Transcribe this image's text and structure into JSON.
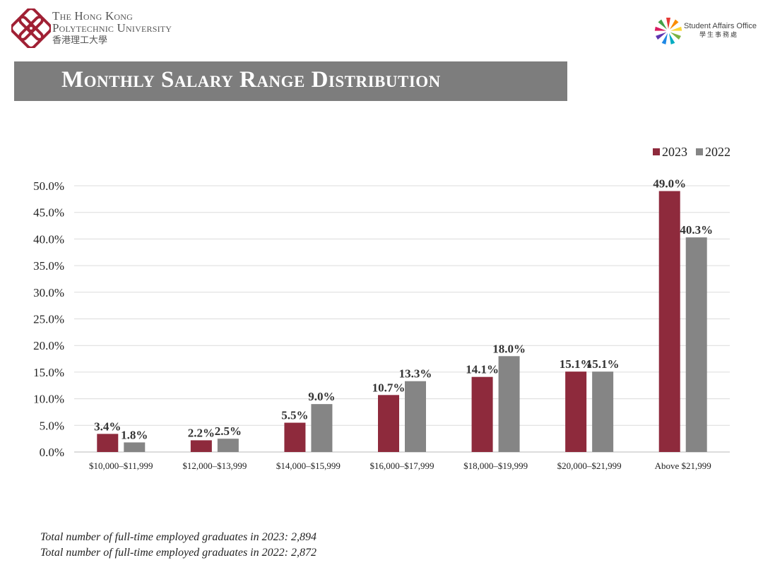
{
  "header": {
    "university_name_line1": "The Hong Kong",
    "university_name_line2": "Polytechnic University",
    "university_name_zh": "香港理工大學",
    "office_name_en": "Student Affairs Office",
    "office_name_zh": "學生事務處"
  },
  "title": "Monthly Salary Range Distribution",
  "colors": {
    "series_2023": "#8e2a3c",
    "series_2022": "#858585",
    "title_bar": "#7d7d7d",
    "brand": "#a02034"
  },
  "chart_data": {
    "type": "bar",
    "title": "Monthly Salary Range Distribution",
    "categories": [
      "$10,000–$11,999",
      "$12,000–$13,999",
      "$14,000–$15,999",
      "$16,000–$17,999",
      "$18,000–$19,999",
      "$20,000–$21,999",
      "Above $21,999"
    ],
    "series": [
      {
        "name": "2023",
        "values": [
          3.4,
          2.2,
          5.5,
          10.7,
          14.1,
          15.1,
          49.0
        ],
        "labels": [
          "3.4%",
          "2.2%",
          "5.5%",
          "10.7%",
          "14.1%",
          "15.1%",
          "49.0%"
        ]
      },
      {
        "name": "2022",
        "values": [
          1.8,
          2.5,
          9.0,
          13.3,
          18.0,
          15.1,
          40.3
        ],
        "labels": [
          "1.8%",
          "2.5%",
          "9.0%",
          "13.3%",
          "18.0%",
          "15.1%",
          "40.3%"
        ]
      }
    ],
    "xlabel": "",
    "ylabel": "",
    "ylim": [
      0,
      50
    ],
    "yticks": [
      "0.0%",
      "5.0%",
      "10.0%",
      "15.0%",
      "20.0%",
      "25.0%",
      "30.0%",
      "35.0%",
      "40.0%",
      "45.0%",
      "50.0%"
    ],
    "grid": true,
    "legend_position": "top-right"
  },
  "footnotes": {
    "line_2023": "Total number of full-time employed graduates in 2023: 2,894",
    "line_2022": "Total number of full-time employed graduates in 2022: 2,872"
  }
}
